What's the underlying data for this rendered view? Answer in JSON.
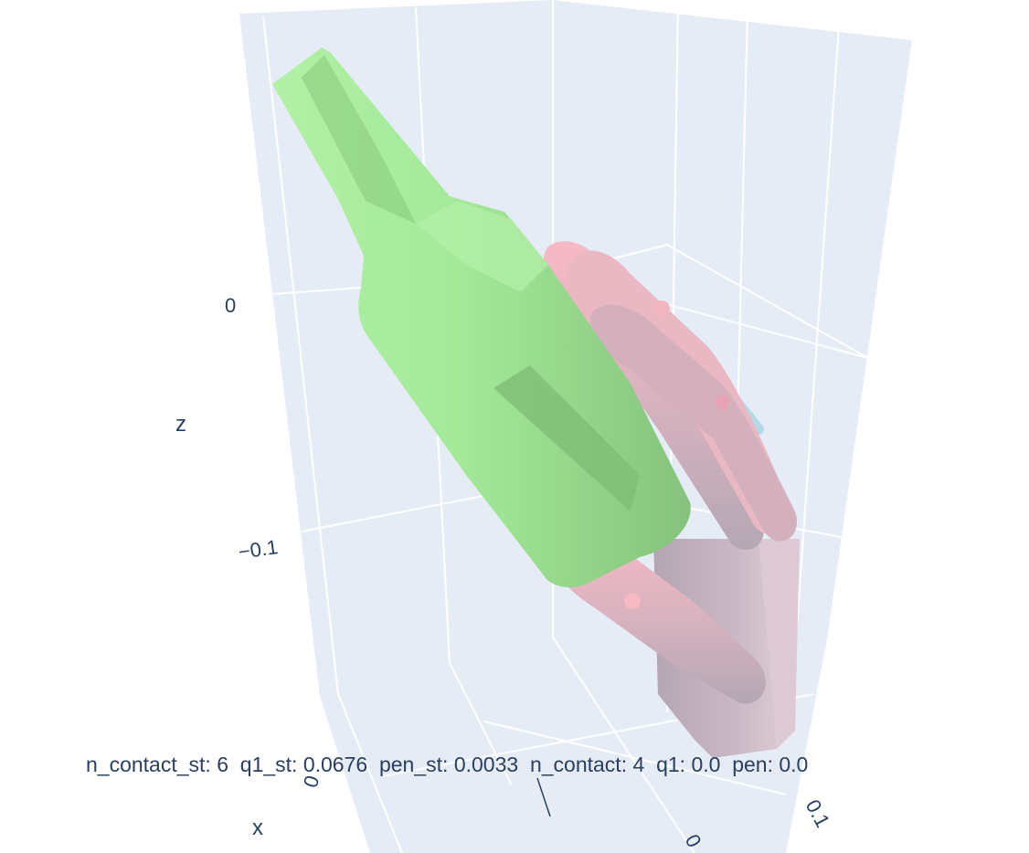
{
  "chart_data": {
    "type": "mesh3d",
    "title": "",
    "axes": {
      "x": {
        "title": "x",
        "ticks": [
          "0",
          "0.1"
        ]
      },
      "y": {
        "title": "",
        "ticks": [
          "0"
        ]
      },
      "z": {
        "title": "z",
        "ticks": [
          "0",
          "−0.1"
        ]
      }
    },
    "grid": true,
    "background_color": "#e5ecf6",
    "gridline_color": "#ffffff",
    "font_color": "#2a3f5f",
    "meshes": [
      {
        "name": "object",
        "shape": "bottle",
        "color": "#a3e998",
        "shade_color": "#86c27d"
      },
      {
        "name": "hand",
        "shape": "robot-hand",
        "color": "#f7b9c4",
        "shade_color": "#b4a7b4"
      },
      {
        "name": "hand-reference",
        "shape": "robot-hand",
        "color": "#add8e6"
      }
    ],
    "annotation": {
      "items": [
        {
          "key": "n_contact_st",
          "value": "6"
        },
        {
          "key": "q1_st",
          "value": "0.0676"
        },
        {
          "key": "pen_st",
          "value": "0.0033"
        },
        {
          "key": "n_contact",
          "value": "4"
        },
        {
          "key": "q1",
          "value": "0.0"
        },
        {
          "key": "pen",
          "value": "0.0"
        }
      ]
    }
  }
}
